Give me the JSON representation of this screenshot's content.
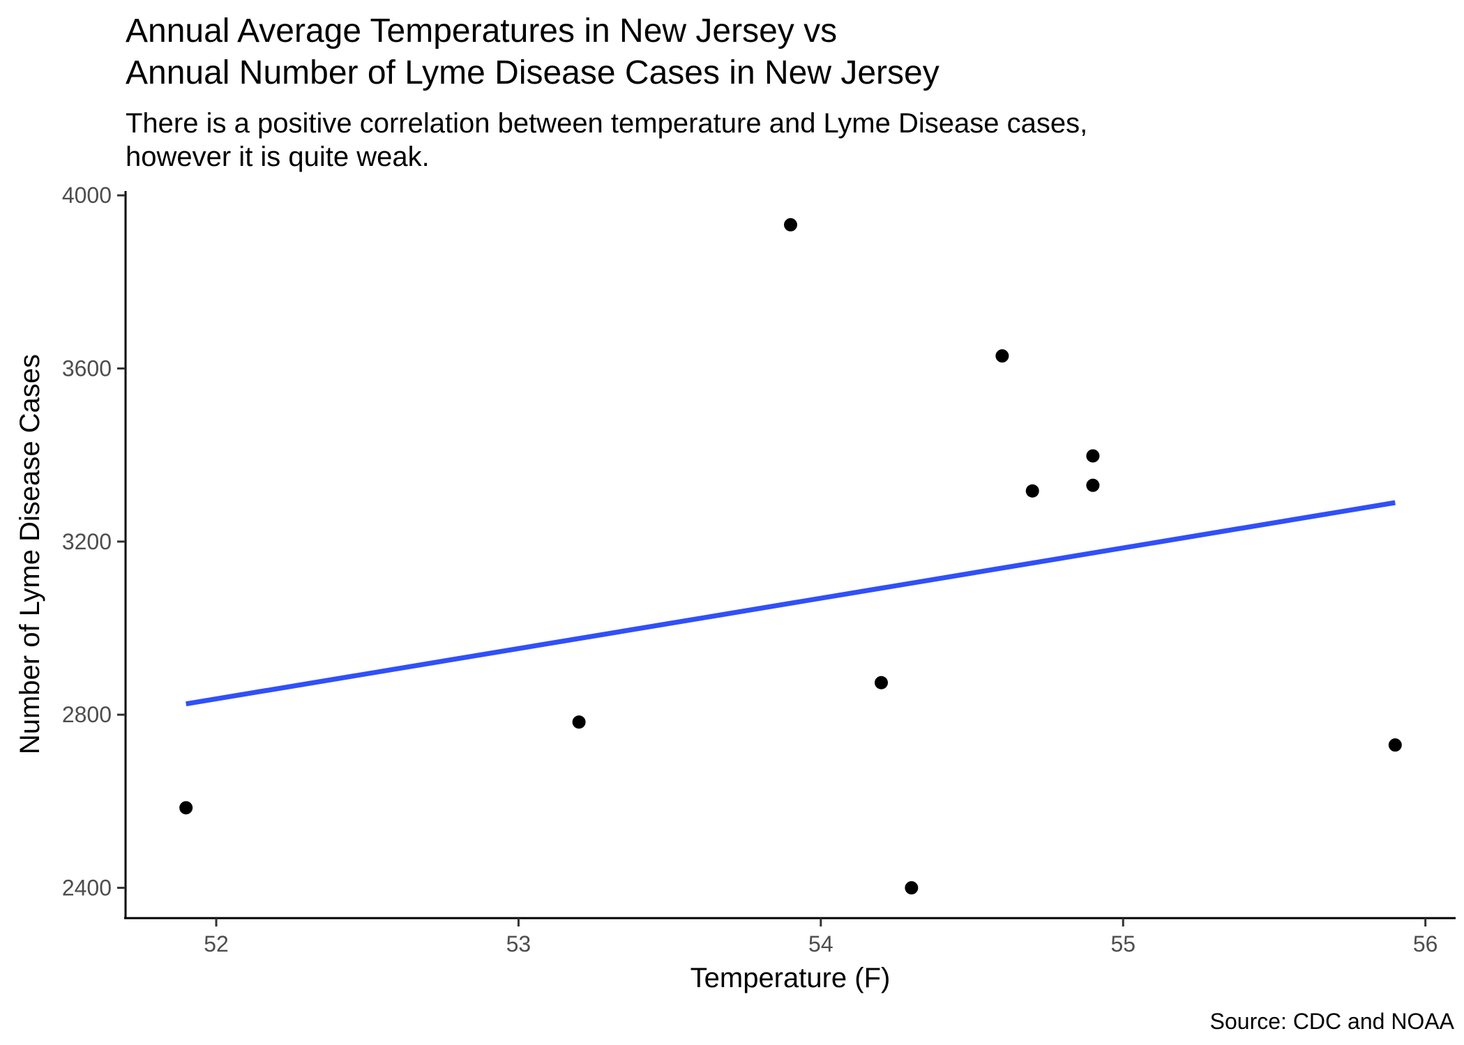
{
  "chart_data": {
    "type": "scatter",
    "title_lines": [
      "Annual Average Temperatures in New Jersey vs",
      "Annual Number of Lyme Disease Cases in New Jersey"
    ],
    "subtitle_lines": [
      "There is a positive correlation between temperature and Lyme Disease cases,",
      "however it is quite weak."
    ],
    "xlabel": "Temperature (F)",
    "ylabel": "Number of Lyme Disease Cases",
    "caption": "Source: CDC and NOAA",
    "xlim": [
      51.7,
      56.1
    ],
    "ylim": [
      2330,
      4010
    ],
    "x_ticks": [
      52,
      53,
      54,
      55,
      56
    ],
    "y_ticks": [
      2400,
      2800,
      3200,
      3600,
      4000
    ],
    "points": [
      {
        "x": 51.9,
        "y": 2585
      },
      {
        "x": 53.2,
        "y": 2783
      },
      {
        "x": 53.9,
        "y": 3932
      },
      {
        "x": 54.2,
        "y": 2874
      },
      {
        "x": 54.3,
        "y": 2400
      },
      {
        "x": 54.6,
        "y": 3629
      },
      {
        "x": 54.7,
        "y": 3317
      },
      {
        "x": 54.9,
        "y": 3398
      },
      {
        "x": 54.9,
        "y": 3330
      },
      {
        "x": 55.9,
        "y": 2730
      }
    ],
    "trend_line": {
      "x": [
        51.9,
        55.9
      ],
      "y": [
        2825,
        3290
      ]
    },
    "grid": false,
    "colors": {
      "points": "#000000",
      "trend_line": "#3050f8",
      "axis": "#000000",
      "tick_labels": "#4d4d4d"
    }
  }
}
